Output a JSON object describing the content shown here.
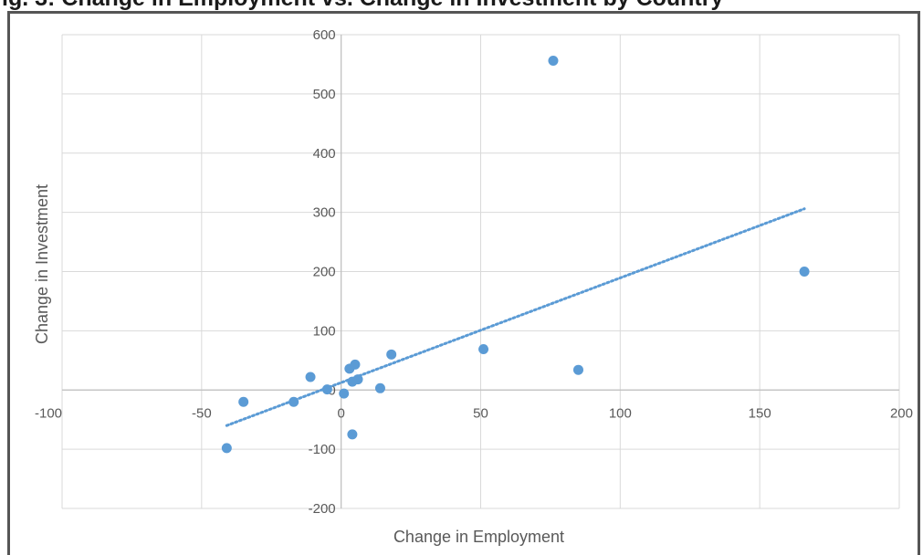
{
  "title": "ig. 3: Change in Employment vs. Change in Investment by Country",
  "chart_data": {
    "type": "scatter",
    "title": "",
    "xlabel": "Change in Employment",
    "ylabel": "Change in Investment",
    "xlim": [
      -100,
      200
    ],
    "ylim": [
      -200,
      600
    ],
    "x_ticks": [
      -100,
      -50,
      0,
      50,
      100,
      150,
      200
    ],
    "y_ticks": [
      -200,
      -100,
      0,
      100,
      200,
      300,
      400,
      500,
      600
    ],
    "x_tick_labels": [
      "-100",
      "-50",
      "0",
      "50",
      "100",
      "150",
      "200"
    ],
    "y_tick_labels": [
      "-200",
      "-100",
      "0",
      "100",
      "200",
      "300",
      "400",
      "500",
      "600"
    ],
    "grid": true,
    "legend": "none",
    "marker_color": "#5b9bd5",
    "series": [
      {
        "points": [
          {
            "x": 76,
            "y": 556
          },
          {
            "x": 166,
            "y": 200
          },
          {
            "x": 85,
            "y": 34
          },
          {
            "x": 51,
            "y": 69
          },
          {
            "x": 18,
            "y": 60
          },
          {
            "x": 5,
            "y": 43
          },
          {
            "x": 3,
            "y": 36
          },
          {
            "x": 6,
            "y": 18
          },
          {
            "x": 4,
            "y": 14
          },
          {
            "x": 14,
            "y": 3
          },
          {
            "x": 1,
            "y": -6
          },
          {
            "x": -5,
            "y": 1
          },
          {
            "x": -11,
            "y": 22
          },
          {
            "x": -17,
            "y": -20
          },
          {
            "x": -35,
            "y": -20
          },
          {
            "x": -41,
            "y": -98
          },
          {
            "x": 4,
            "y": -75
          }
        ]
      }
    ],
    "trendline": {
      "style": "dotted",
      "color": "#5b9bd5",
      "x_start": -41,
      "y_start": -60,
      "x_end": 166,
      "y_end": 306
    }
  }
}
